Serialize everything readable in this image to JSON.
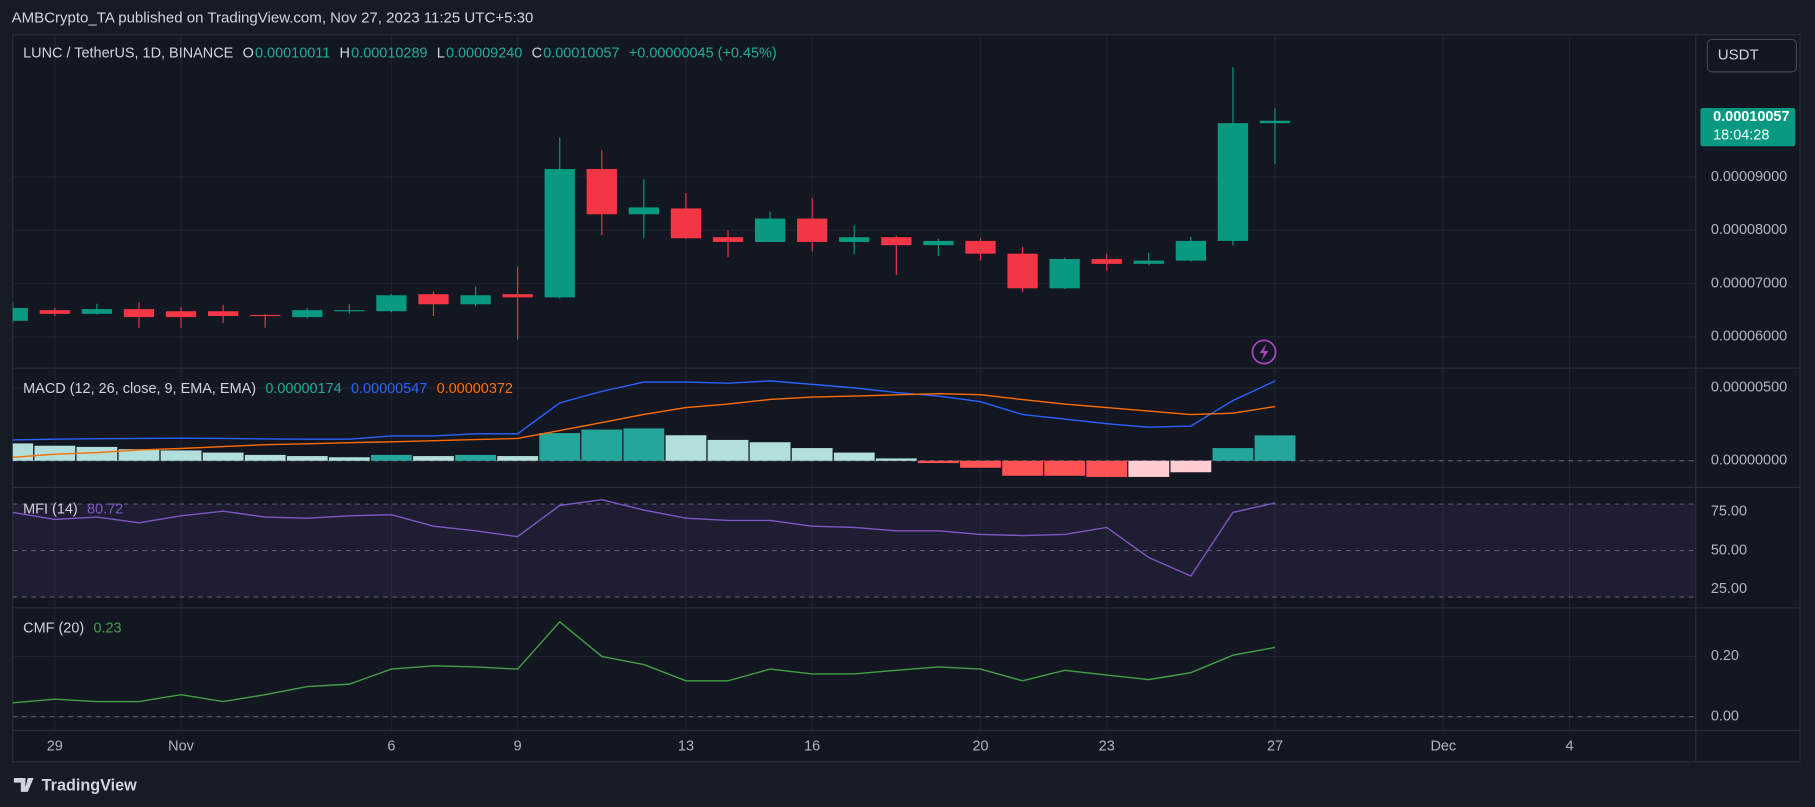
{
  "header": "AMBCrypto_TA published on TradingView.com, Nov 27, 2023 11:25 UTC+5:30",
  "footer_brand": "TradingView",
  "currency": "USDT",
  "price_badge": {
    "price": "0.00010057",
    "countdown": "18:04:28"
  },
  "chart_data": [
    {
      "type": "candlestick",
      "legend": {
        "symbol": "LUNC / TetherUS, 1D, BINANCE",
        "items": [
          {
            "label": "O",
            "value": "0.00010011"
          },
          {
            "label": "H",
            "value": "0.00010289"
          },
          {
            "label": "L",
            "value": "0.00009240"
          },
          {
            "label": "C",
            "value": "0.00010057"
          }
        ],
        "change": "+0.00000045 (+0.45%)"
      },
      "x": [
        "2023-10-28",
        "2023-10-29",
        "2023-10-30",
        "2023-10-31",
        "2023-11-01",
        "2023-11-02",
        "2023-11-03",
        "2023-11-04",
        "2023-11-05",
        "2023-11-06",
        "2023-11-07",
        "2023-11-08",
        "2023-11-09",
        "2023-11-10",
        "2023-11-11",
        "2023-11-12",
        "2023-11-13",
        "2023-11-14",
        "2023-11-15",
        "2023-11-16",
        "2023-11-17",
        "2023-11-18",
        "2023-11-19",
        "2023-11-20",
        "2023-11-21",
        "2023-11-22",
        "2023-11-23",
        "2023-11-24",
        "2023-11-25",
        "2023-11-26",
        "2023-11-27"
      ],
      "xlim": [
        "2023-10-28",
        "2023-12-07"
      ],
      "xticks": [
        {
          "value": "2023-10-29",
          "label": "29"
        },
        {
          "value": "2023-11-01",
          "label": "Nov"
        },
        {
          "value": "2023-11-06",
          "label": "6"
        },
        {
          "value": "2023-11-09",
          "label": "9"
        },
        {
          "value": "2023-11-13",
          "label": "13"
        },
        {
          "value": "2023-11-16",
          "label": "16"
        },
        {
          "value": "2023-11-20",
          "label": "20"
        },
        {
          "value": "2023-11-23",
          "label": "23"
        },
        {
          "value": "2023-11-27",
          "label": "27"
        },
        {
          "value": "2023-12-01",
          "label": "Dec"
        },
        {
          "value": "2023-12-04",
          "label": "4"
        }
      ],
      "open": [
        6.3e-05,
        6.5e-05,
        6.43e-05,
        6.52e-05,
        6.48e-05,
        6.48e-05,
        6.41e-05,
        6.37e-05,
        6.48e-05,
        6.48e-05,
        6.8e-05,
        6.61e-05,
        6.8e-05,
        6.74e-05,
        9.15e-05,
        8.3e-05,
        8.41e-05,
        7.87e-05,
        7.78e-05,
        8.22e-05,
        7.78e-05,
        7.87e-05,
        7.72e-05,
        7.8e-05,
        7.56e-05,
        6.91e-05,
        7.46e-05,
        7.37e-05,
        7.43e-05,
        7.8e-05,
        0.00010011
      ],
      "high": [
        6.65e-05,
        6.54e-05,
        6.62e-05,
        6.65e-05,
        6.56e-05,
        6.6e-05,
        6.43e-05,
        6.54e-05,
        6.61e-05,
        6.8e-05,
        6.85e-05,
        6.94e-05,
        7.32e-05,
        9.74e-05,
        9.5e-05,
        8.96e-05,
        8.7e-05,
        8e-05,
        8.35e-05,
        8.61e-05,
        8.09e-05,
        7.9e-05,
        7.84e-05,
        7.85e-05,
        7.69e-05,
        7.48e-05,
        7.56e-05,
        7.58e-05,
        7.88e-05,
        0.00011065,
        0.00010289
      ],
      "low": [
        6.26e-05,
        6.39e-05,
        6.42e-05,
        6.17e-05,
        6.17e-05,
        6.26e-05,
        6.17e-05,
        6.34e-05,
        6.43e-05,
        6.46e-05,
        6.39e-05,
        6.57e-05,
        5.95e-05,
        6.72e-05,
        7.91e-05,
        7.85e-05,
        7.84e-05,
        7.5e-05,
        7.78e-05,
        7.6e-05,
        7.55e-05,
        7.16e-05,
        7.52e-05,
        7.43e-05,
        6.84e-05,
        6.9e-05,
        7.25e-05,
        7.34e-05,
        7.41e-05,
        7.717e-05,
        9.24e-05
      ],
      "close": [
        6.54e-05,
        6.43e-05,
        6.52e-05,
        6.37e-05,
        6.37e-05,
        6.39e-05,
        6.39e-05,
        6.5e-05,
        6.5e-05,
        6.78e-05,
        6.61e-05,
        6.78e-05,
        6.74e-05,
        9.15e-05,
        8.3e-05,
        8.43e-05,
        7.85e-05,
        7.78e-05,
        8.22e-05,
        7.78e-05,
        7.87e-05,
        7.72e-05,
        7.8e-05,
        7.56e-05,
        6.91e-05,
        7.46e-05,
        7.37e-05,
        7.43e-05,
        7.8e-05,
        0.00010011,
        0.00010057
      ],
      "up_color": "#089981",
      "down_color": "#f23645",
      "ylim": [
        5.41e-05,
        0.0001167
      ],
      "yticks": [
        {
          "value": 6e-05,
          "label": "0.00006000"
        },
        {
          "value": 7e-05,
          "label": "0.00007000"
        },
        {
          "value": 8e-05,
          "label": "0.00008000"
        },
        {
          "value": 9e-05,
          "label": "0.00009000"
        }
      ],
      "grid": true
    },
    {
      "type": "macd",
      "title": "MACD (12, 26, close, 9, EMA, EMA)",
      "series": [
        {
          "style": "bar",
          "legend_value": "0.00000174",
          "legend_color": "#22ab94",
          "values": [
            1.19e-06,
            1.03e-06,
            9.5e-07,
            7.9e-07,
            7.1e-07,
            5.6e-07,
            4e-07,
            3.2e-07,
            2.4e-07,
            4e-07,
            3.2e-07,
            4e-07,
            3.2e-07,
            1.9e-06,
            2.14e-06,
            2.22e-06,
            1.75e-06,
            1.43e-06,
            1.27e-06,
            8.7e-07,
            5.6e-07,
            1.6e-07,
            -1.6e-07,
            -4.8e-07,
            -1.03e-06,
            -1.03e-06,
            -1.11e-06,
            -1.11e-06,
            -7.9e-07,
            8.7e-07,
            1.74e-06
          ],
          "colors": [
            "#b2dfdb",
            "#b2dfdb",
            "#b2dfdb",
            "#b2dfdb",
            "#b2dfdb",
            "#b2dfdb",
            "#b2dfdb",
            "#b2dfdb",
            "#b2dfdb",
            "#26a69a",
            "#b2dfdb",
            "#26a69a",
            "#b2dfdb",
            "#26a69a",
            "#26a69a",
            "#26a69a",
            "#b2dfdb",
            "#b2dfdb",
            "#b2dfdb",
            "#b2dfdb",
            "#b2dfdb",
            "#b2dfdb",
            "#ff5252",
            "#ff5252",
            "#ff5252",
            "#ff5252",
            "#ff5252",
            "#ffcdd2",
            "#ffcdd2",
            "#26a69a",
            "#26a69a"
          ]
        },
        {
          "style": "line",
          "color": "#2962ff",
          "legend_value": "0.00000547",
          "values": [
            1.43e-06,
            1.48e-06,
            1.51e-06,
            1.53e-06,
            1.55e-06,
            1.53e-06,
            1.5e-06,
            1.48e-06,
            1.48e-06,
            1.7e-06,
            1.7e-06,
            1.85e-06,
            1.85e-06,
            3.97e-06,
            4.76e-06,
            5.4e-06,
            5.4e-06,
            5.32e-06,
            5.48e-06,
            5.24e-06,
            5e-06,
            4.68e-06,
            4.44e-06,
            4.05e-06,
            3.17e-06,
            2.86e-06,
            2.54e-06,
            2.3e-06,
            2.38e-06,
            4.13e-06,
            5.47e-06
          ]
        },
        {
          "style": "line",
          "color": "#ff6d00",
          "legend_value": "0.00000372",
          "values": [
            2.4e-07,
            4.5e-07,
            5.6e-07,
            7.4e-07,
            8.4e-07,
            9.7e-07,
            1.1e-06,
            1.16e-06,
            1.24e-06,
            1.3e-06,
            1.38e-06,
            1.45e-06,
            1.53e-06,
            2.07e-06,
            2.62e-06,
            3.18e-06,
            3.65e-06,
            3.89e-06,
            4.21e-06,
            4.37e-06,
            4.44e-06,
            4.52e-06,
            4.6e-06,
            4.53e-06,
            4.2e-06,
            3.89e-06,
            3.65e-06,
            3.41e-06,
            3.17e-06,
            3.26e-06,
            3.72e-06
          ]
        }
      ],
      "levels": [
        0
      ],
      "ylim": [
        -1.83e-06,
        6.35e-06
      ],
      "yticks": [
        {
          "value": 5e-06,
          "label": "0.00000500"
        },
        {
          "value": 0,
          "label": "0.00000000"
        }
      ],
      "grid": true
    },
    {
      "type": "line",
      "title": "MFI (14)",
      "series": [
        {
          "style": "line",
          "color": "#7e57c2",
          "legend_value": "80.72",
          "values": [
            74.6,
            70.1,
            71.6,
            67.9,
            72.4,
            75.4,
            71.6,
            70.9,
            72.4,
            73.1,
            65.7,
            62.7,
            59.0,
            79.1,
            82.8,
            76.1,
            70.9,
            69.4,
            69.4,
            65.7,
            64.9,
            62.7,
            62.7,
            60.4,
            59.7,
            60.4,
            64.9,
            45.5,
            33.6,
            74.6,
            80.72
          ]
        }
      ],
      "levels": [
        80,
        50,
        20
      ],
      "band": [
        20,
        80
      ],
      "band_color": "#7e57c2",
      "ylim": [
        13.1,
        90.7
      ],
      "yticks": [
        {
          "value": 75,
          "label": "75.00"
        },
        {
          "value": 50,
          "label": "50.00"
        },
        {
          "value": 25,
          "label": "25.00"
        }
      ],
      "grid": false
    },
    {
      "type": "line",
      "title": "CMF (20)",
      "series": [
        {
          "style": "line",
          "color": "#43a047",
          "legend_value": "0.23",
          "values": [
            0.046,
            0.058,
            0.05,
            0.05,
            0.073,
            0.05,
            0.073,
            0.1,
            0.108,
            0.158,
            0.169,
            0.165,
            0.158,
            0.315,
            0.2,
            0.173,
            0.119,
            0.119,
            0.158,
            0.142,
            0.142,
            0.154,
            0.165,
            0.158,
            0.119,
            0.154,
            0.138,
            0.123,
            0.146,
            0.204,
            0.23
          ]
        }
      ],
      "levels": [
        0
      ],
      "ylim": [
        -0.046,
        0.3615
      ],
      "yticks": [
        {
          "value": 0.2,
          "label": "0.20"
        },
        {
          "value": 0,
          "label": "0.00"
        }
      ],
      "grid": true
    }
  ]
}
